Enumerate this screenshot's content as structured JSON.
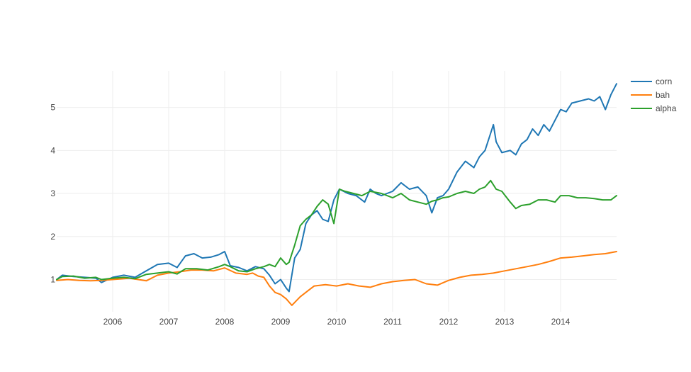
{
  "chart_data": {
    "type": "line",
    "title": "",
    "xlabel": "",
    "ylabel": "",
    "x_ticks": [
      "2006",
      "2007",
      "2008",
      "2009",
      "2010",
      "2011",
      "2012",
      "2013",
      "2014"
    ],
    "y_ticks": [
      "1",
      "2",
      "3",
      "4",
      "5"
    ],
    "xlim": [
      2005.0,
      2015.0
    ],
    "ylim": [
      0.25,
      5.85
    ],
    "grid": true,
    "legend_position": "top-right",
    "series": [
      {
        "name": "corn",
        "color": "#1f77b4",
        "x": [
          2005.0,
          2005.1,
          2005.3,
          2005.5,
          2005.7,
          2005.8,
          2006.0,
          2006.2,
          2006.4,
          2006.6,
          2006.8,
          2007.0,
          2007.15,
          2007.3,
          2007.45,
          2007.6,
          2007.75,
          2007.9,
          2008.0,
          2008.1,
          2008.25,
          2008.4,
          2008.55,
          2008.7,
          2008.8,
          2008.9,
          2009.0,
          2009.1,
          2009.15,
          2009.25,
          2009.35,
          2009.45,
          2009.55,
          2009.65,
          2009.75,
          2009.85,
          2009.95,
          2010.05,
          2010.2,
          2010.35,
          2010.5,
          2010.6,
          2010.7,
          2010.8,
          2011.0,
          2011.15,
          2011.3,
          2011.45,
          2011.6,
          2011.7,
          2011.8,
          2011.9,
          2012.0,
          2012.15,
          2012.3,
          2012.45,
          2012.55,
          2012.65,
          2012.75,
          2012.8,
          2012.85,
          2012.95,
          2013.1,
          2013.2,
          2013.3,
          2013.4,
          2013.5,
          2013.6,
          2013.7,
          2013.8,
          2013.9,
          2014.0,
          2014.1,
          2014.2,
          2014.35,
          2014.5,
          2014.6,
          2014.7,
          2014.8,
          2014.9,
          2015.0
        ],
        "values": [
          1.0,
          1.1,
          1.07,
          1.05,
          1.03,
          0.93,
          1.05,
          1.1,
          1.05,
          1.2,
          1.35,
          1.38,
          1.28,
          1.55,
          1.6,
          1.5,
          1.52,
          1.58,
          1.65,
          1.32,
          1.28,
          1.2,
          1.3,
          1.25,
          1.1,
          0.9,
          1.0,
          0.8,
          0.72,
          1.5,
          1.7,
          2.3,
          2.5,
          2.6,
          2.4,
          2.35,
          2.85,
          3.1,
          3.0,
          2.95,
          2.8,
          3.1,
          3.0,
          2.95,
          3.05,
          3.25,
          3.1,
          3.15,
          2.95,
          2.55,
          2.9,
          2.95,
          3.1,
          3.5,
          3.75,
          3.6,
          3.85,
          4.0,
          4.4,
          4.6,
          4.2,
          3.95,
          4.0,
          3.9,
          4.15,
          4.25,
          4.5,
          4.35,
          4.6,
          4.45,
          4.7,
          4.95,
          4.9,
          5.1,
          5.15,
          5.2,
          5.15,
          5.25,
          4.95,
          5.3,
          5.55
        ]
      },
      {
        "name": "bah",
        "color": "#ff7f0e",
        "x": [
          2005.0,
          2005.2,
          2005.4,
          2005.6,
          2005.8,
          2006.0,
          2006.3,
          2006.6,
          2006.8,
          2007.0,
          2007.2,
          2007.4,
          2007.6,
          2007.8,
          2008.0,
          2008.2,
          2008.4,
          2008.5,
          2008.6,
          2008.7,
          2008.8,
          2008.9,
          2009.0,
          2009.1,
          2009.2,
          2009.35,
          2009.5,
          2009.6,
          2009.8,
          2010.0,
          2010.2,
          2010.4,
          2010.6,
          2010.8,
          2011.0,
          2011.2,
          2011.4,
          2011.6,
          2011.8,
          2012.0,
          2012.2,
          2012.4,
          2012.6,
          2012.8,
          2013.0,
          2013.2,
          2013.4,
          2013.6,
          2013.8,
          2014.0,
          2014.2,
          2014.4,
          2014.6,
          2014.8,
          2015.0
        ],
        "values": [
          0.98,
          1.0,
          0.98,
          0.97,
          0.98,
          1.0,
          1.03,
          0.97,
          1.1,
          1.15,
          1.18,
          1.22,
          1.22,
          1.2,
          1.27,
          1.15,
          1.12,
          1.15,
          1.08,
          1.05,
          0.85,
          0.7,
          0.65,
          0.55,
          0.4,
          0.6,
          0.75,
          0.85,
          0.88,
          0.85,
          0.9,
          0.85,
          0.82,
          0.9,
          0.95,
          0.98,
          1.0,
          0.9,
          0.87,
          0.98,
          1.05,
          1.1,
          1.12,
          1.15,
          1.2,
          1.25,
          1.3,
          1.35,
          1.42,
          1.5,
          1.52,
          1.55,
          1.58,
          1.6,
          1.65
        ]
      },
      {
        "name": "alpha",
        "color": "#2ca02c",
        "x": [
          2005.0,
          2005.1,
          2005.3,
          2005.5,
          2005.7,
          2005.8,
          2006.0,
          2006.2,
          2006.4,
          2006.6,
          2006.8,
          2007.0,
          2007.15,
          2007.3,
          2007.5,
          2007.7,
          2007.9,
          2008.0,
          2008.1,
          2008.25,
          2008.4,
          2008.55,
          2008.7,
          2008.8,
          2008.9,
          2009.0,
          2009.1,
          2009.15,
          2009.25,
          2009.35,
          2009.45,
          2009.55,
          2009.65,
          2009.75,
          2009.85,
          2009.95,
          2010.05,
          2010.15,
          2010.3,
          2010.45,
          2010.6,
          2010.8,
          2011.0,
          2011.15,
          2011.3,
          2011.45,
          2011.6,
          2011.7,
          2011.8,
          2011.9,
          2012.0,
          2012.15,
          2012.3,
          2012.45,
          2012.55,
          2012.65,
          2012.75,
          2012.85,
          2012.95,
          2013.1,
          2013.2,
          2013.3,
          2013.45,
          2013.6,
          2013.75,
          2013.9,
          2014.0,
          2014.15,
          2014.3,
          2014.45,
          2014.6,
          2014.75,
          2014.9,
          2015.0
        ],
        "values": [
          1.0,
          1.07,
          1.08,
          1.03,
          1.05,
          1.0,
          1.03,
          1.05,
          1.02,
          1.12,
          1.15,
          1.18,
          1.13,
          1.25,
          1.25,
          1.22,
          1.3,
          1.35,
          1.3,
          1.2,
          1.18,
          1.25,
          1.3,
          1.35,
          1.3,
          1.5,
          1.35,
          1.4,
          1.8,
          2.25,
          2.4,
          2.5,
          2.7,
          2.85,
          2.75,
          2.3,
          3.1,
          3.05,
          3.0,
          2.95,
          3.05,
          3.0,
          2.9,
          3.0,
          2.85,
          2.8,
          2.75,
          2.82,
          2.85,
          2.9,
          2.92,
          3.0,
          3.05,
          3.0,
          3.1,
          3.15,
          3.3,
          3.1,
          3.05,
          2.8,
          2.65,
          2.72,
          2.75,
          2.85,
          2.85,
          2.8,
          2.95,
          2.95,
          2.9,
          2.9,
          2.88,
          2.85,
          2.85,
          2.95
        ]
      }
    ]
  }
}
